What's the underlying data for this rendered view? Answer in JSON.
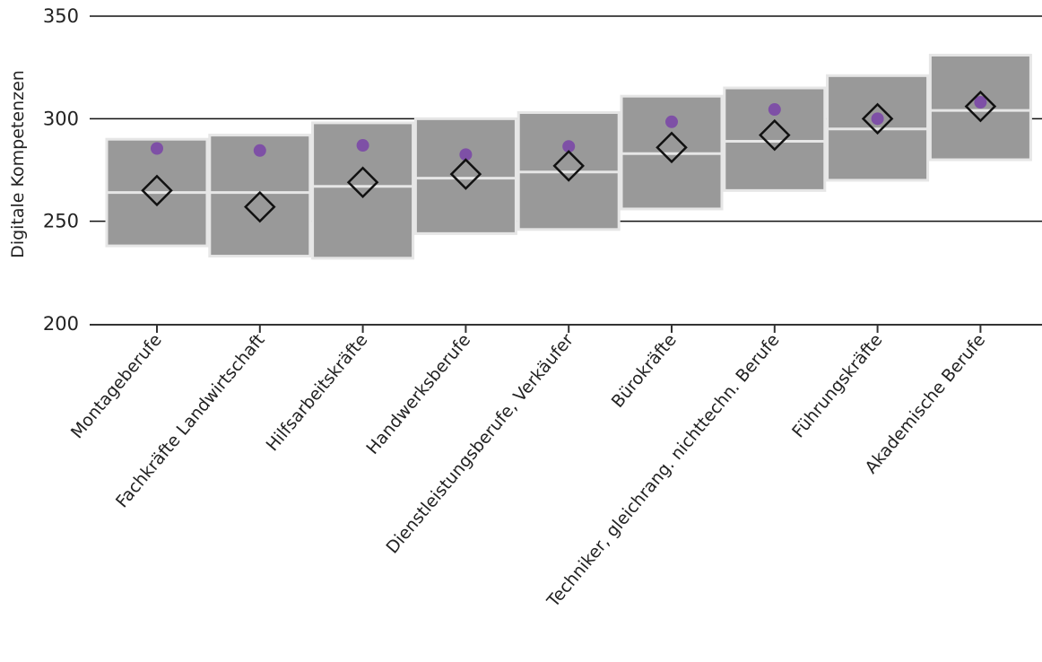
{
  "chart_data": {
    "type": "box",
    "ylabel": "Digitale Kompetenzen",
    "ylim": [
      200,
      350
    ],
    "yticks": [
      200,
      250,
      300,
      350
    ],
    "gridlines": [
      250,
      300,
      350
    ],
    "categories": [
      "Montageberufe",
      "Fachkräfte Landwirtschaft",
      "Hilfsarbeitskräfte",
      "Handwerksberufe",
      "Dienstleistungsberufe, Verkäufer",
      "Bürokräfte",
      "Techniker, gleichrang. nichttechn. Berufe",
      "Führungskräfte",
      "Akademische Berufe"
    ],
    "boxes": [
      {
        "low": 238,
        "median": 264,
        "high": 290,
        "diamond": 265,
        "dot": 285.5
      },
      {
        "low": 233,
        "median": 264,
        "high": 292,
        "diamond": 257,
        "dot": 284.5
      },
      {
        "low": 232,
        "median": 267,
        "high": 298,
        "diamond": 269,
        "dot": 287
      },
      {
        "low": 244,
        "median": 271,
        "high": 300,
        "diamond": 273,
        "dot": 282.5
      },
      {
        "low": 246,
        "median": 274,
        "high": 303,
        "diamond": 277,
        "dot": 286.5
      },
      {
        "low": 256,
        "median": 283,
        "high": 311,
        "diamond": 286,
        "dot": 298.5
      },
      {
        "low": 265,
        "median": 289,
        "high": 315,
        "diamond": 292,
        "dot": 304.5
      },
      {
        "low": 270,
        "median": 295,
        "high": 321,
        "diamond": 300,
        "dot": 300
      },
      {
        "low": 280,
        "median": 304,
        "high": 331,
        "diamond": 306,
        "dot": 308
      }
    ],
    "colors": {
      "box_fill": "#999999",
      "box_stroke": "#e6e6e6",
      "dot": "#7e50a6",
      "diamond_stroke": "#111111",
      "axis": "#333333"
    }
  }
}
